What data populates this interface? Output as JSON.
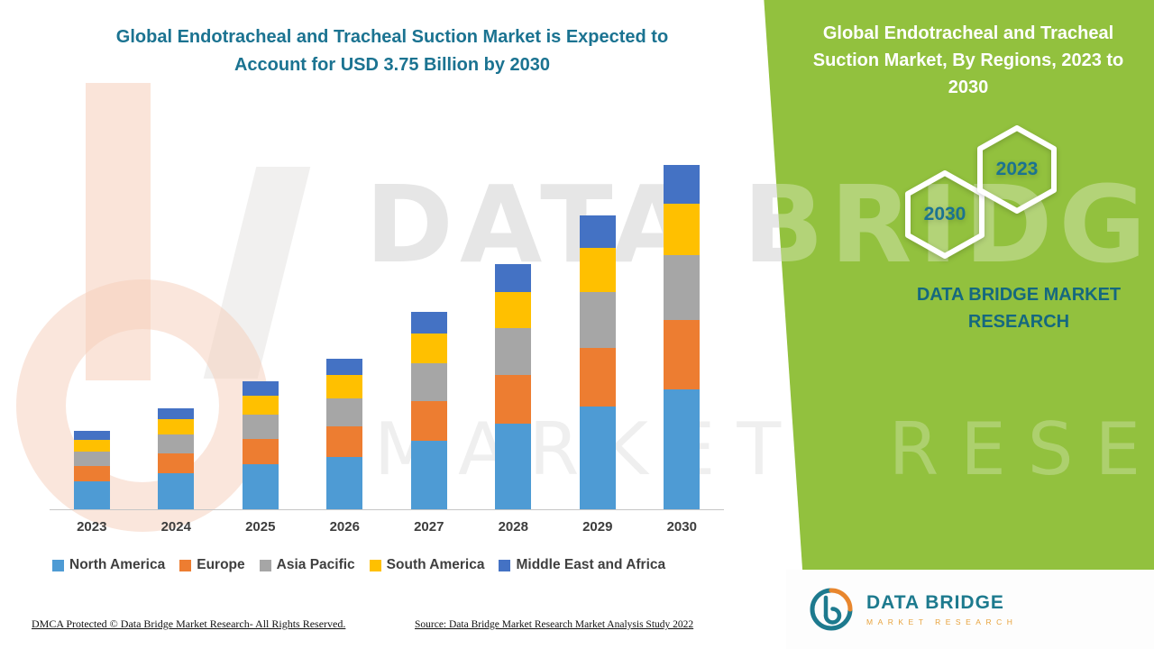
{
  "main_title": "Global Endotracheal and Tracheal Suction Market is Expected to Account for USD 3.75 Billion by 2030",
  "side_title": "Global Endotracheal and Tracheal Suction Market, By Regions, 2023 to 2030",
  "badges": {
    "year_2030": "2030",
    "year_2023": "2023"
  },
  "brand_text": "DATA BRIDGE MARKET RESEARCH",
  "watermark": {
    "line1": "DATA BRIDGE",
    "line2": "MARKET RESEARCH"
  },
  "footer": {
    "dmca": "DMCA Protected © Data Bridge Market Research- All Rights Reserved.",
    "source": "Source: Data Bridge Market Research Market Analysis Study 2022"
  },
  "logo": {
    "name": "DATA BRIDGE",
    "sub": "MARKET RESEARCH"
  },
  "colors": {
    "accent_teal": "#1b7391",
    "panel_green": "#92c13e",
    "logo_orange": "#e8a33d"
  },
  "chart_data": {
    "type": "bar",
    "stacked": true,
    "title": "Global Endotracheal and Tracheal Suction Market, By Regions, 2023 to 2030",
    "unit": "USD Billion",
    "xlabel": "",
    "ylabel": "",
    "value_axis_visible": false,
    "grid": false,
    "legend_position": "bottom",
    "ylim": [
      0,
      3.75
    ],
    "categories": [
      "2023",
      "2024",
      "2025",
      "2026",
      "2027",
      "2028",
      "2029",
      "2030"
    ],
    "series": [
      {
        "name": "North America",
        "color": "#4e9bd4",
        "values": [
          0.3,
          0.39,
          0.49,
          0.57,
          0.75,
          0.93,
          1.12,
          1.31
        ]
      },
      {
        "name": "Europe",
        "color": "#ed7d31",
        "values": [
          0.17,
          0.22,
          0.28,
          0.33,
          0.43,
          0.53,
          0.64,
          0.75
        ]
      },
      {
        "name": "Asia Pacific",
        "color": "#a6a6a6",
        "values": [
          0.16,
          0.21,
          0.26,
          0.31,
          0.41,
          0.51,
          0.61,
          0.71
        ]
      },
      {
        "name": "South America",
        "color": "#ffc000",
        "values": [
          0.13,
          0.16,
          0.21,
          0.25,
          0.32,
          0.4,
          0.48,
          0.56
        ]
      },
      {
        "name": "Middle East and Africa",
        "color": "#4472c4",
        "values": [
          0.09,
          0.12,
          0.15,
          0.18,
          0.24,
          0.3,
          0.35,
          0.42
        ]
      }
    ],
    "totals": [
      0.85,
      1.1,
      1.39,
      1.64,
      2.15,
      2.67,
      3.2,
      3.75
    ]
  }
}
